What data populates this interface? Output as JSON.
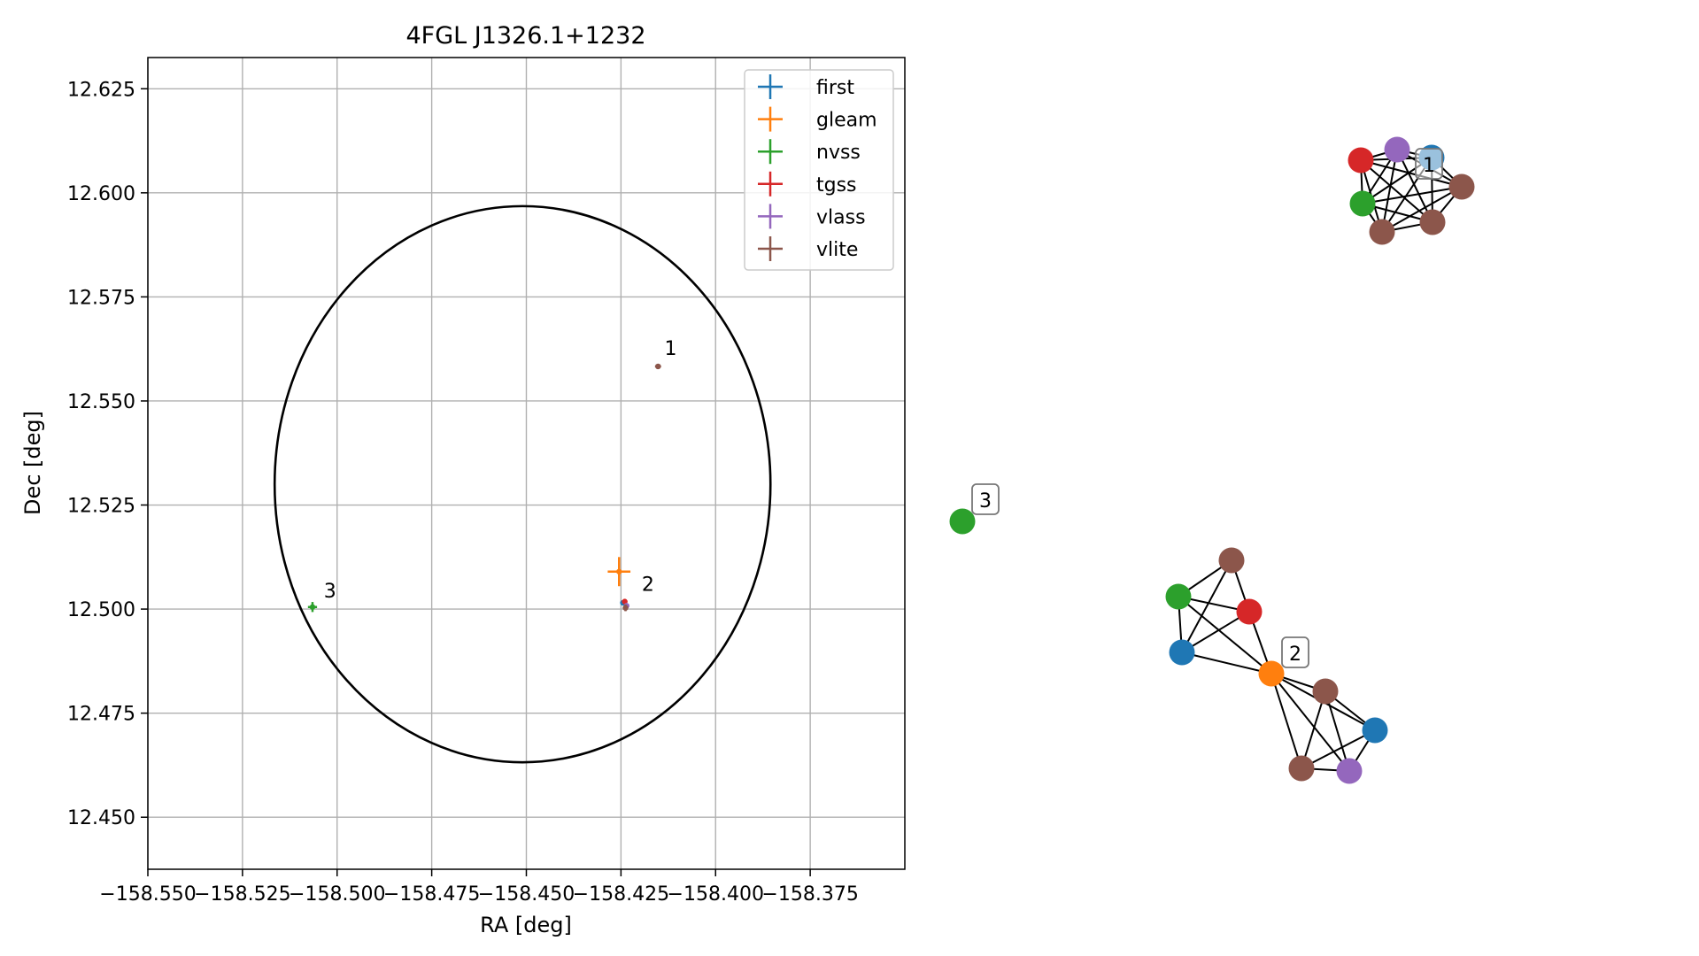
{
  "chart_data": [
    {
      "type": "scatter",
      "title": "4FGL J1326.1+1232",
      "xlabel": "RA [deg]",
      "ylabel": "Dec [deg]",
      "xlim": [
        -158.55,
        -158.35
      ],
      "ylim": [
        12.4375,
        12.6325
      ],
      "x_ticks": [
        -158.55,
        -158.525,
        -158.5,
        -158.475,
        -158.45,
        -158.425,
        -158.4,
        -158.375
      ],
      "x_tick_labels": [
        "−158.550",
        "−158.525",
        "−158.500",
        "−158.475",
        "−158.450",
        "−158.425",
        "−158.400",
        "−158.375"
      ],
      "y_ticks": [
        12.45,
        12.475,
        12.5,
        12.525,
        12.55,
        12.575,
        12.6,
        12.625
      ],
      "y_tick_labels": [
        "12.450",
        "12.475",
        "12.500",
        "12.525",
        "12.550",
        "12.575",
        "12.600",
        "12.625"
      ],
      "grid": true,
      "legend_position": "top-right",
      "circle": {
        "center": [
          -158.451,
          12.53
        ],
        "radius_ra": 0.0655,
        "radius_dec": 0.0668,
        "color": "#000000"
      },
      "series": [
        {
          "name": "first",
          "color": "#1f77b4",
          "points": [
            {
              "x": -158.4245,
              "y": 12.5015,
              "xerr": 0.0005,
              "yerr": 0.0005
            }
          ]
        },
        {
          "name": "gleam",
          "color": "#ff7f0e",
          "points": [
            {
              "x": -158.4255,
              "y": 12.509,
              "xerr": 0.003,
              "yerr": 0.0035
            }
          ]
        },
        {
          "name": "nvss",
          "color": "#2ca02c",
          "points": [
            {
              "x": -158.5065,
              "y": 12.5005,
              "xerr": 0.0012,
              "yerr": 0.0012
            }
          ]
        },
        {
          "name": "tgss",
          "color": "#d62728",
          "points": [
            {
              "x": -158.424,
              "y": 12.5018,
              "xerr": 0.0004,
              "yerr": 0.0004
            }
          ]
        },
        {
          "name": "vlass",
          "color": "#9467bd",
          "points": [
            {
              "x": -158.4235,
              "y": 12.5008,
              "xerr": 0.0002,
              "yerr": 0.0002
            }
          ]
        },
        {
          "name": "vlite",
          "color": "#8c564b",
          "points": [
            {
              "x": -158.4152,
              "y": 12.5583,
              "xerr": 0.0008,
              "yerr": 0.0006
            },
            {
              "x": -158.4238,
              "y": 12.5003,
              "xerr": 0.0004,
              "yerr": 0.0008
            }
          ]
        }
      ],
      "annotations": [
        {
          "text": "1",
          "x": -158.4135,
          "y": 12.561
        },
        {
          "text": "2",
          "x": -158.4195,
          "y": 12.5044
        },
        {
          "text": "3",
          "x": -158.5035,
          "y": 12.5028
        }
      ]
    },
    {
      "type": "network",
      "colors": {
        "first": "#1f77b4",
        "gleam": "#ff7f0e",
        "nvss": "#2ca02c",
        "tgss": "#d62728",
        "vlass": "#9467bd",
        "vlite": "#8c564b"
      },
      "clusters": [
        {
          "label": "1",
          "nodes": [
            {
              "id": "c1_first",
              "source": "first",
              "px": [
                1617,
                178
              ]
            },
            {
              "id": "c1_vlass",
              "source": "vlass",
              "px": [
                1578,
                169
              ]
            },
            {
              "id": "c1_tgss",
              "source": "tgss",
              "px": [
                1537,
                181
              ]
            },
            {
              "id": "c1_nvss",
              "source": "nvss",
              "px": [
                1539,
                230
              ]
            },
            {
              "id": "c1_vlite_a",
              "source": "vlite",
              "px": [
                1651,
                211
              ]
            },
            {
              "id": "c1_vlite_b",
              "source": "vlite",
              "px": [
                1618,
                251
              ]
            },
            {
              "id": "c1_vlite_c",
              "source": "vlite",
              "px": [
                1561,
                262
              ]
            }
          ],
          "edges": "complete"
        },
        {
          "label": "2",
          "nodes": [
            {
              "id": "c2_vlite_a",
              "source": "vlite",
              "px": [
                1391,
                633
              ]
            },
            {
              "id": "c2_nvss",
              "source": "nvss",
              "px": [
                1331,
                674
              ]
            },
            {
              "id": "c2_tgss",
              "source": "tgss",
              "px": [
                1411,
                691
              ]
            },
            {
              "id": "c2_first_a",
              "source": "first",
              "px": [
                1335,
                737
              ]
            },
            {
              "id": "c2_gleam",
              "source": "gleam",
              "px": [
                1436,
                761
              ]
            },
            {
              "id": "c2_vlite_b",
              "source": "vlite",
              "px": [
                1497,
                781
              ]
            },
            {
              "id": "c2_first_b",
              "source": "first",
              "px": [
                1553,
                825
              ]
            },
            {
              "id": "c2_vlite_c",
              "source": "vlite",
              "px": [
                1470,
                868
              ]
            },
            {
              "id": "c2_vlass",
              "source": "vlass",
              "px": [
                1524,
                871
              ]
            }
          ],
          "edges": [
            [
              "c2_vlite_a",
              "c2_nvss"
            ],
            [
              "c2_vlite_a",
              "c2_tgss"
            ],
            [
              "c2_vlite_a",
              "c2_first_a"
            ],
            [
              "c2_nvss",
              "c2_tgss"
            ],
            [
              "c2_nvss",
              "c2_first_a"
            ],
            [
              "c2_nvss",
              "c2_gleam"
            ],
            [
              "c2_tgss",
              "c2_first_a"
            ],
            [
              "c2_tgss",
              "c2_gleam"
            ],
            [
              "c2_first_a",
              "c2_gleam"
            ],
            [
              "c2_gleam",
              "c2_vlite_b"
            ],
            [
              "c2_gleam",
              "c2_first_b"
            ],
            [
              "c2_gleam",
              "c2_vlite_c"
            ],
            [
              "c2_gleam",
              "c2_vlass"
            ],
            [
              "c2_vlite_b",
              "c2_first_b"
            ],
            [
              "c2_vlite_b",
              "c2_vlite_c"
            ],
            [
              "c2_vlite_b",
              "c2_vlass"
            ],
            [
              "c2_first_b",
              "c2_vlite_c"
            ],
            [
              "c2_first_b",
              "c2_vlass"
            ],
            [
              "c2_vlite_c",
              "c2_vlass"
            ]
          ]
        },
        {
          "label": "3",
          "nodes": [
            {
              "id": "c3_nvss",
              "source": "nvss",
              "px": [
                1087,
                589
              ]
            }
          ],
          "edges": []
        }
      ]
    }
  ]
}
